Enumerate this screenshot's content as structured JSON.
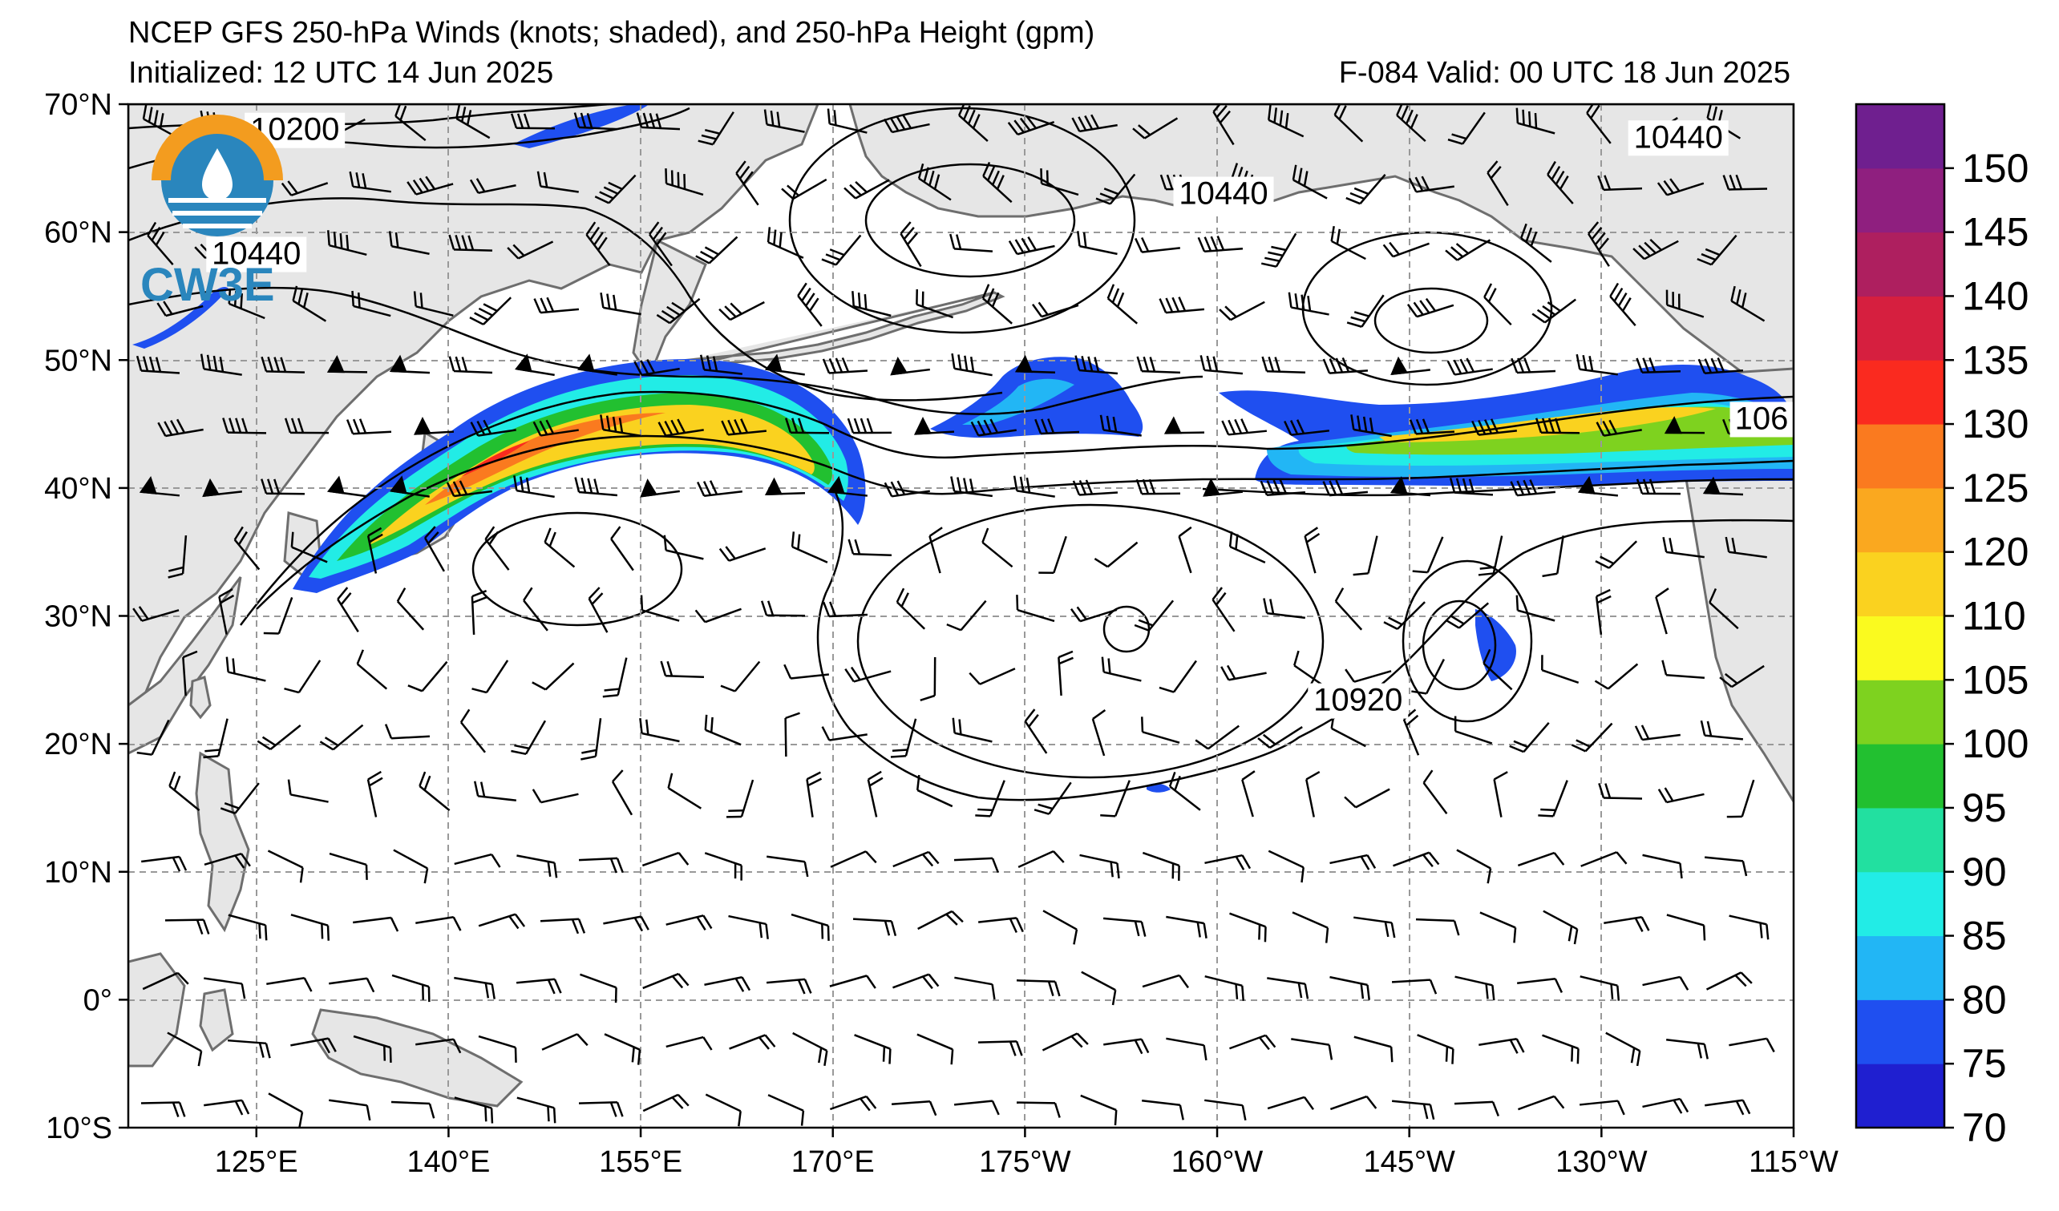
{
  "title": {
    "line1": "NCEP GFS 250-hPa Winds (knots; shaded), and 250-hPa Height (gpm)",
    "line2": "Initialized: 12 UTC 14 Jun 2025",
    "right": "F-084  Valid: 00 UTC 18 Jun 2025"
  },
  "logo": {
    "text": "CW3E",
    "icon": "cw3e-droplet-logo-icon"
  },
  "axes": {
    "lat_labels": [
      "70°N",
      "60°N",
      "50°N",
      "40°N",
      "30°N",
      "20°N",
      "10°N",
      "0°",
      "10°S"
    ],
    "lat_values": [
      70,
      60,
      50,
      40,
      30,
      20,
      10,
      0,
      -10
    ],
    "lon_labels": [
      "125°E",
      "140°E",
      "155°E",
      "170°E",
      "175°W",
      "160°W",
      "145°W",
      "130°W",
      "115°W"
    ],
    "lon_values": [
      125,
      140,
      155,
      170,
      185,
      200,
      215,
      230,
      245
    ],
    "lon_range": [
      115,
      245
    ],
    "lat_range": [
      -10,
      70
    ]
  },
  "contour_labels": [
    {
      "text": "10200",
      "lon": 128,
      "lat": 67.2
    },
    {
      "text": "10440",
      "lon": 125,
      "lat": 57.5
    },
    {
      "text": "10440",
      "lon": 200.5,
      "lat": 62.2
    },
    {
      "text": "10440",
      "lon": 236,
      "lat": 66.6
    },
    {
      "text": "10920",
      "lon": 211,
      "lat": 22.6
    },
    {
      "text": "106",
      "lon": 242.5,
      "lat": 44.6
    }
  ],
  "colorbar": {
    "unit": "knots",
    "labels": [
      "70",
      "75",
      "80",
      "85",
      "90",
      "95",
      "100",
      "105",
      "110",
      "120",
      "125",
      "130",
      "135",
      "140",
      "145",
      "150"
    ],
    "colors": [
      "#1f1fd0",
      "#1f4ff0",
      "#22b6f5",
      "#22ece6",
      "#22e0a0",
      "#22c030",
      "#7ed21f",
      "#fafa1f",
      "#fad21f",
      "#faa81f",
      "#fa7a1f",
      "#fa2a1f",
      "#d61f3f",
      "#ae1f5f",
      "#8f1f7f",
      "#6f1f8f"
    ]
  },
  "jet_colors": {
    "outer": "#1f4ff0",
    "light_blue": "#22b6f5",
    "cyan": "#22ece6",
    "green": "#22c030",
    "yellow_green": "#7ed21f",
    "yellow": "#fad21f",
    "orange": "#fa7a1f",
    "red": "#fa2a1f"
  },
  "land_color": "#e6e6e6",
  "coast_color": "#6e6e6e"
}
